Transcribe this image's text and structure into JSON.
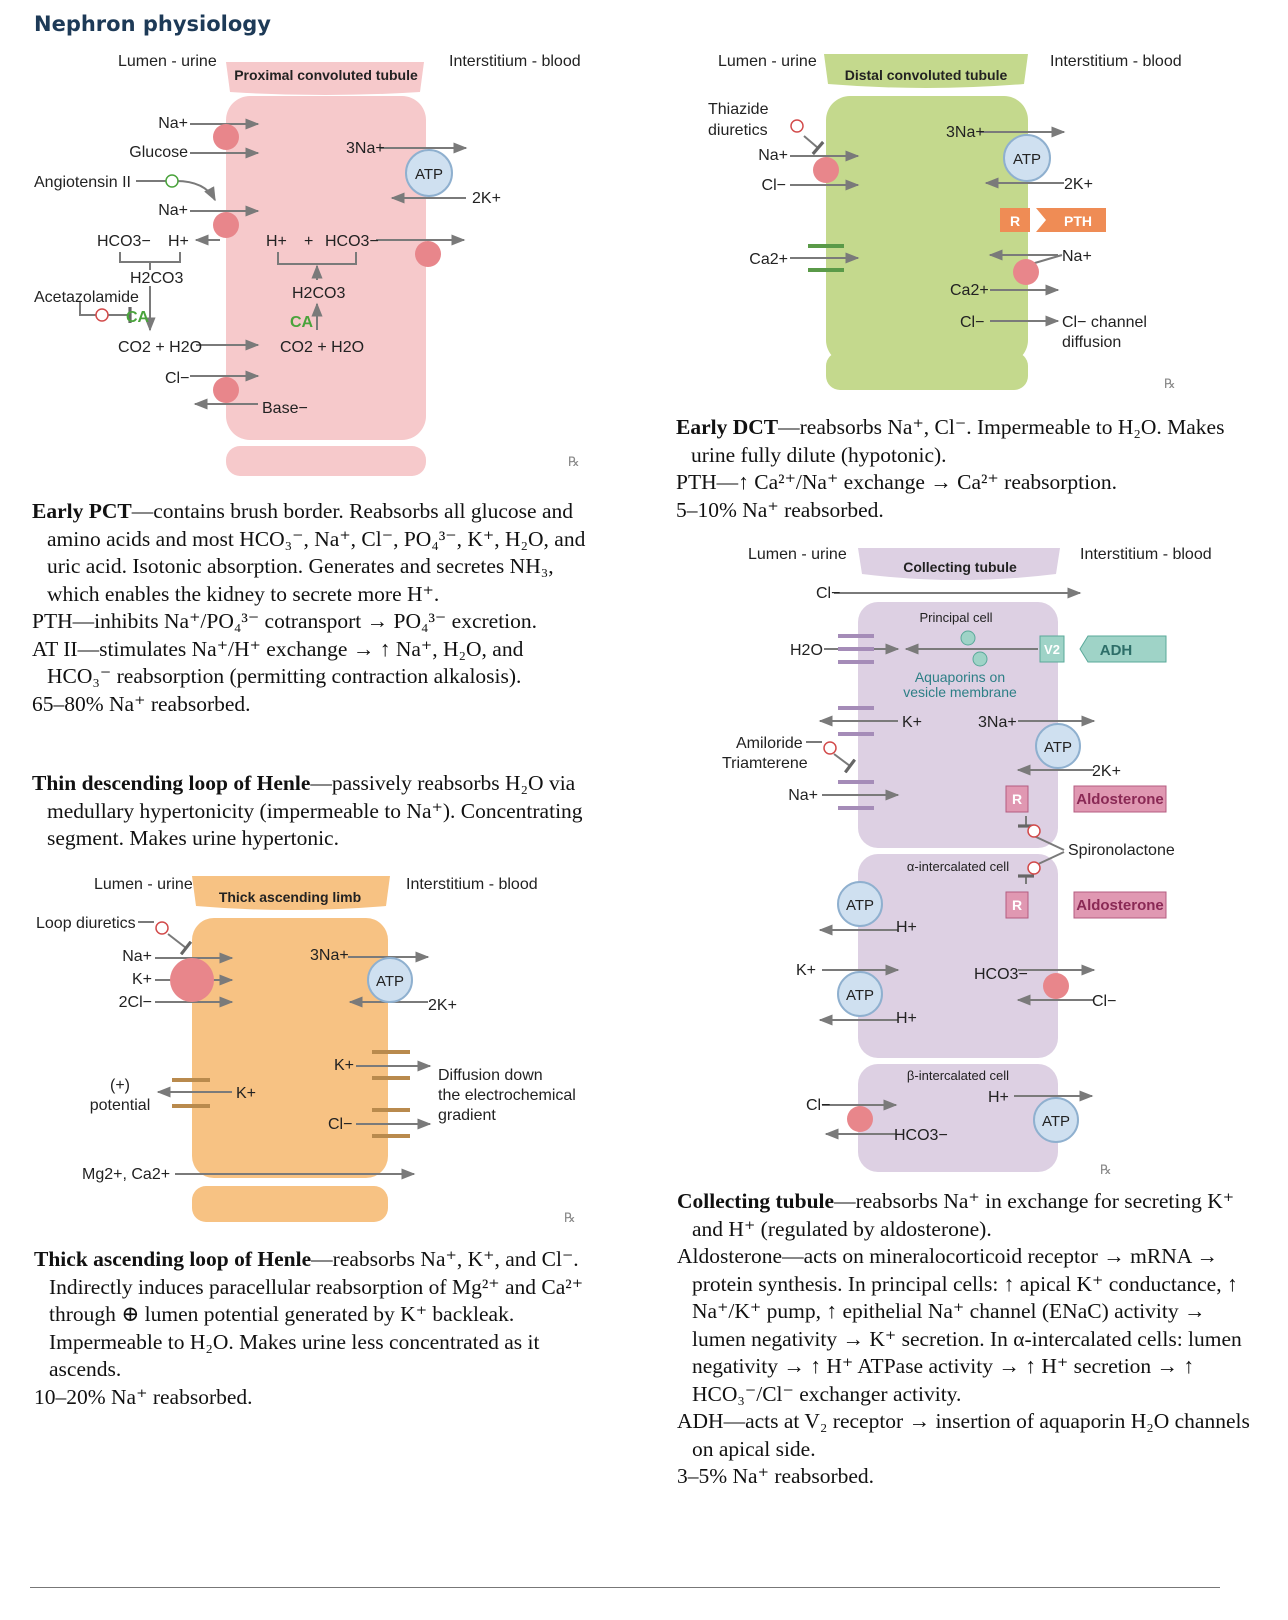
{
  "page": {
    "title": "Nephron physiology",
    "rx": "℞"
  },
  "common": {
    "lumen": "Lumen - urine",
    "interstitium": "Interstitium - blood",
    "atp": "ATP"
  },
  "pct": {
    "title": "Proximal convoluted tubule",
    "labels": {
      "na1": "Na+",
      "glucose": "Glucose",
      "angiotensin": "Angiotensin II",
      "na2": "Na+",
      "hco3": "HCO3−",
      "h_lumen": "H+",
      "h_cell": "H+",
      "plus": "+",
      "hco3_cell": "HCO3−",
      "h2co3_lumen": "H2CO3",
      "h2co3_cell": "H2CO3",
      "acetazolamide": "Acetazolamide",
      "ca_lumen": "CA",
      "ca_cell": "CA",
      "co2_lumen": "CO2 + H2O",
      "co2_cell": "CO2 + H2O",
      "cl": "Cl−",
      "base": "Base−",
      "na3": "3Na+",
      "k2": "2K+"
    },
    "description": [
      {
        "lead": "Early PCT",
        "text": "—contains brush border. Reabsorbs all glucose and amino acids and most HCO₃⁻, Na⁺, Cl⁻, PO₄³⁻, K⁺, H₂O, and uric acid. Isotonic absorption. Generates and secretes NH₃, which enables the kidney to secrete more H⁺."
      },
      {
        "lead": "",
        "text": "PTH—inhibits Na⁺/PO₄³⁻ cotransport → PO₄³⁻ excretion."
      },
      {
        "lead": "",
        "text": "AT II—stimulates Na⁺/H⁺ exchange → ↑ Na⁺, H₂O, and HCO₃⁻ reabsorption (permitting contraction alkalosis)."
      },
      {
        "lead": "",
        "text": "65–80% Na⁺ reabsorbed."
      }
    ]
  },
  "tdl": {
    "description": [
      {
        "lead": "Thin descending loop of Henle",
        "text": "—passively reabsorbs H₂O via medullary hypertonicity (impermeable to Na⁺). Concentrating segment. Makes urine hypertonic."
      }
    ]
  },
  "tal": {
    "title": "Thick ascending limb",
    "labels": {
      "loop": "Loop diuretics",
      "na": "Na+",
      "k": "K+",
      "cl2": "2Cl−",
      "na3": "3Na+",
      "k2": "2K+",
      "kb": "K+",
      "clb": "Cl−",
      "diff1": "Diffusion down",
      "diff2": "the electrochemical",
      "diff3": "gradient",
      "pos1": "(+)",
      "pos2": "potential",
      "kl": "K+",
      "mgca": "Mg2+, Ca2+"
    },
    "description": [
      {
        "lead": "Thick ascending loop of Henle",
        "text": "—reabsorbs Na⁺, K⁺, and Cl⁻. Indirectly induces paracellular reabsorption of Mg²⁺ and Ca²⁺ through ⊕ lumen potential generated by K⁺ backleak. Impermeable to H₂O. Makes urine less concentrated as it ascends."
      },
      {
        "lead": "",
        "text": "10–20% Na⁺ reabsorbed."
      }
    ]
  },
  "dct": {
    "title": "Distal convoluted tubule",
    "labels": {
      "thiazide1": "Thiazide",
      "thiazide2": "diuretics",
      "na": "Na+",
      "cl": "Cl−",
      "ca": "Ca2+",
      "na3": "3Na+",
      "k2": "2K+",
      "r": "R",
      "pth": "PTH",
      "na_b": "Na+",
      "ca_b": "Ca2+",
      "cl_b": "Cl−",
      "clch1": "Cl− channel",
      "clch2": "diffusion"
    },
    "description": [
      {
        "lead": "Early DCT",
        "text": "—reabsorbs Na⁺, Cl⁻. Impermeable to H₂O. Makes urine fully dilute (hypotonic)."
      },
      {
        "lead": "",
        "text": "PTH—↑ Ca²⁺/Na⁺ exchange → Ca²⁺ reabsorption."
      },
      {
        "lead": "",
        "text": "5–10% Na⁺ reabsorbed."
      }
    ]
  },
  "ct": {
    "title": "Collecting tubule",
    "labels": {
      "cl_top": "Cl−",
      "principal": "Principal cell",
      "h2o": "H2O",
      "v2": "V2",
      "adh": "ADH",
      "aqua1": "Aquaporins on",
      "aqua2": "vesicle membrane",
      "k_apical": "K+",
      "na3": "3Na+",
      "amiloride1": "Amiloride",
      "amiloride2": "Triamterene",
      "k2": "2K+",
      "na": "Na+",
      "r": "R",
      "aldosterone": "Aldosterone",
      "spiro": "Spironolactone",
      "alpha": "α-intercalated cell",
      "h1": "H+",
      "k_alpha": "K+",
      "hco3": "HCO3−",
      "cl_alpha": "Cl−",
      "h2": "H+",
      "beta": "β-intercalated cell",
      "cl_beta": "Cl−",
      "hco3_beta": "HCO3−",
      "h_beta": "H+"
    },
    "description": [
      {
        "lead": "Collecting tubule",
        "text": "—reabsorbs Na⁺ in exchange for secreting K⁺ and H⁺ (regulated by aldosterone)."
      },
      {
        "lead": "",
        "text": "Aldosterone—acts on mineralocorticoid receptor → mRNA → protein synthesis. In principal cells: ↑ apical K⁺ conductance, ↑ Na⁺/K⁺ pump, ↑ epithelial Na⁺ channel (ENaC) activity → lumen negativity → K⁺ secretion. In α-intercalated cells: lumen negativity → ↑ H⁺ ATPase activity → ↑ H⁺ secretion → ↑ HCO₃⁻/Cl⁻ exchanger activity."
      },
      {
        "lead": "",
        "text": "ADH—acts at V₂ receptor → insertion of aquaporin H₂O channels on apical side."
      },
      {
        "lead": "",
        "text": "3–5% Na⁺ reabsorbed."
      }
    ]
  },
  "colors": {
    "title": "#1d3a57",
    "pct_cell": "#f6c9cb",
    "tal_cell": "#f7c283",
    "dct_cell": "#c4d98d",
    "ct_cell": "#ddd0e3",
    "arrow": "#7a7a7a",
    "transporter": "#e8868b",
    "atp": "#cfe0f0",
    "ca_green": "#4aa33c",
    "pth": "#ef8c55",
    "adh": "#9fd3c7",
    "aldo": "#e098b2"
  }
}
